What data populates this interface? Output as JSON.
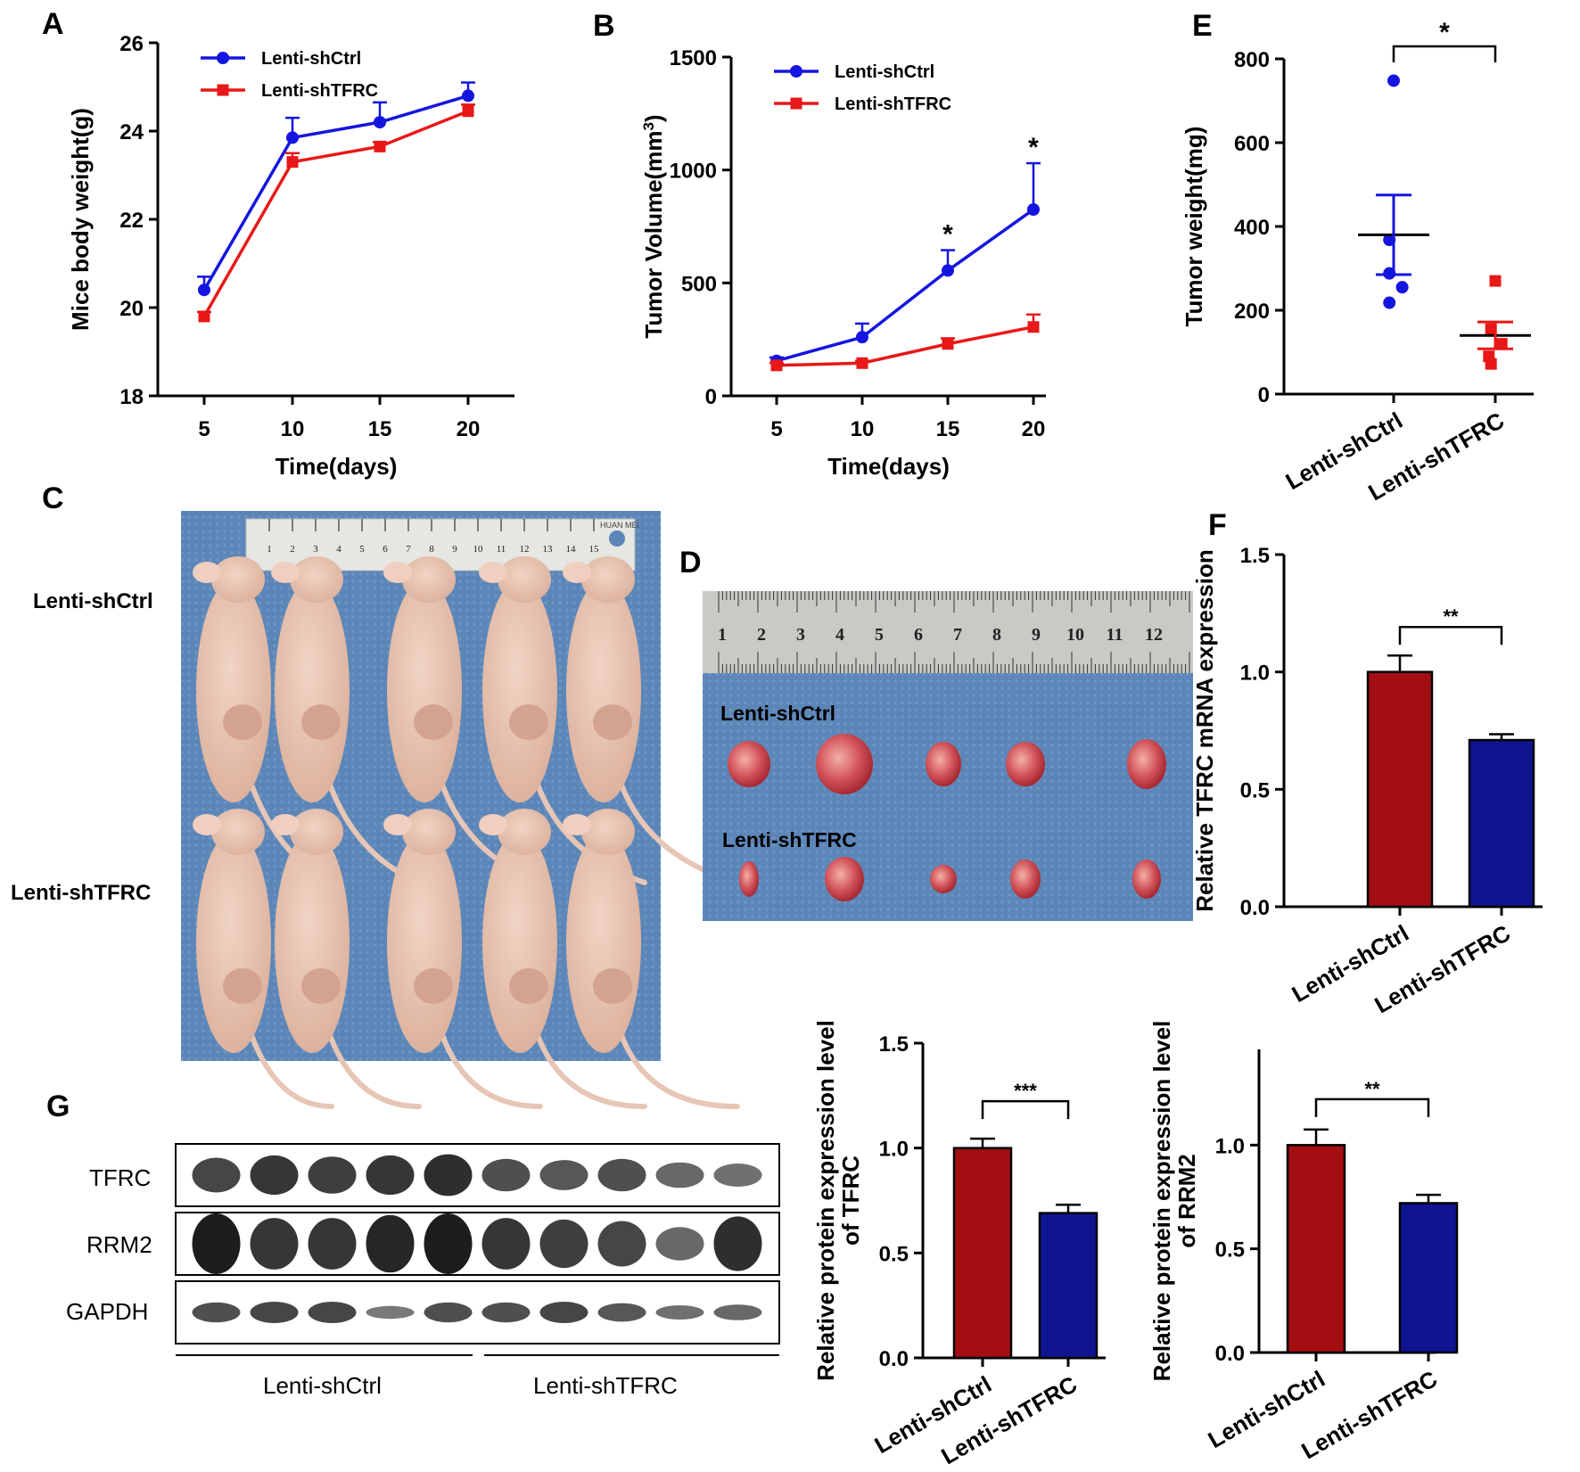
{
  "panels": {
    "A": "A",
    "B": "B",
    "C": "C",
    "D": "D",
    "E": "E",
    "F": "F",
    "G": "G"
  },
  "colors": {
    "ctrl_line": "#1515e0",
    "shtfrc_line": "#e81818",
    "ctrl_bar": "#a30e12",
    "shtfrc_bar": "#0f1591",
    "photo_bg": "#5d86b8"
  },
  "photo_C": {
    "row1_label": "Lenti-shCtrl",
    "row2_label": "Lenti-shTFRC",
    "ruler_brand": "HUAN MEI",
    "ruler_numbers": [
      "1",
      "2",
      "3",
      "4",
      "5",
      "6",
      "7",
      "8",
      "9",
      "10",
      "11",
      "12",
      "13",
      "14",
      "15"
    ]
  },
  "photo_D": {
    "row1_label": "Lenti-shCtrl",
    "row2_label": "Lenti-shTFRC",
    "ruler_numbers": [
      "1",
      "2",
      "3",
      "4",
      "5",
      "6",
      "7",
      "8",
      "9",
      "10",
      "11",
      "12"
    ]
  },
  "western_blot": {
    "rows": [
      "TFRC",
      "RRM2",
      "GAPDH"
    ],
    "group1": "Lenti-shCtrl",
    "group2": "Lenti-shTFRC",
    "lanes": 10
  },
  "chart_data": [
    {
      "id": "A",
      "type": "line",
      "ylabel": "Mice body weight(g)",
      "xlabel": "Time(days)",
      "x": [
        5,
        10,
        15,
        20
      ],
      "ylim": [
        18,
        26
      ],
      "yticks": [
        18,
        20,
        22,
        24,
        26
      ],
      "series": [
        {
          "name": "Lenti-shCtrl",
          "values": [
            20.4,
            23.85,
            24.2,
            24.8
          ],
          "err": [
            0.3,
            0.45,
            0.45,
            0.3
          ]
        },
        {
          "name": "Lenti-shTFRC",
          "values": [
            19.8,
            23.3,
            23.65,
            24.45
          ],
          "err": [
            0.1,
            0.2,
            0.1,
            0.15
          ]
        }
      ]
    },
    {
      "id": "B",
      "type": "line",
      "ylabel": "Tumor Volume(mm",
      "ylabel_sup": "3",
      "ylabel_end": ")",
      "xlabel": "Time(days)",
      "x": [
        5,
        10,
        15,
        20
      ],
      "ylim": [
        0,
        1500
      ],
      "yticks": [
        0,
        500,
        1000,
        1500
      ],
      "series": [
        {
          "name": "Lenti-shCtrl",
          "values": [
            155,
            260,
            555,
            825
          ],
          "err": [
            15,
            60,
            90,
            205
          ]
        },
        {
          "name": "Lenti-shTFRC",
          "values": [
            135,
            145,
            230,
            305
          ],
          "err": [
            10,
            10,
            25,
            55
          ]
        }
      ],
      "annotations": [
        {
          "x": 15,
          "text": "*"
        },
        {
          "x": 20,
          "text": "*"
        }
      ]
    },
    {
      "id": "E",
      "type": "scatter",
      "ylabel": "Tumor weight(mg)",
      "categories": [
        "Lenti-shCtrl",
        "Lenti-shTFRC"
      ],
      "ylim": [
        0,
        800
      ],
      "yticks": [
        0,
        200,
        400,
        600,
        800
      ],
      "series": [
        {
          "name": "Lenti-shCtrl",
          "values": [
            748,
            368,
            288,
            255,
            218
          ],
          "mean": 380,
          "sem_low": 285,
          "sem_high": 475
        },
        {
          "name": "Lenti-shTFRC",
          "values": [
            270,
            155,
            120,
            90,
            72
          ],
          "mean": 140,
          "sem_low": 108,
          "sem_high": 172
        }
      ],
      "significance": "*"
    },
    {
      "id": "F",
      "type": "bar",
      "ylabel": "Relative TFRC mRNA expression",
      "categories": [
        "Lenti-shCtrl",
        "Lenti-shTFRC"
      ],
      "values": [
        1.0,
        0.71
      ],
      "err": [
        0.07,
        0.025
      ],
      "ylim": [
        0,
        1.5
      ],
      "yticks": [
        "0.0",
        "0.5",
        "1.0",
        "1.5"
      ],
      "significance": "**"
    },
    {
      "id": "G1",
      "type": "bar",
      "ylabel_line1": "Relative protein expression level",
      "ylabel_line2": "of TFRC",
      "categories": [
        "Lenti-shCtrl",
        "Lenti-shTFRC"
      ],
      "values": [
        1.0,
        0.69
      ],
      "err": [
        0.045,
        0.04
      ],
      "ylim": [
        0,
        1.5
      ],
      "yticks": [
        "0.0",
        "0.5",
        "1.0",
        "1.5"
      ],
      "significance": "***"
    },
    {
      "id": "G2",
      "type": "bar",
      "ylabel_line1": "Relative protein expression level",
      "ylabel_line2": "of RRM2",
      "categories": [
        "Lenti-shCtrl",
        "Lenti-shTFRC"
      ],
      "values": [
        1.0,
        0.72
      ],
      "err": [
        0.075,
        0.04
      ],
      "ylim": [
        0,
        1.5
      ],
      "yticks": [
        "0.0",
        "0.5",
        "1.0"
      ],
      "significance": "**"
    }
  ]
}
